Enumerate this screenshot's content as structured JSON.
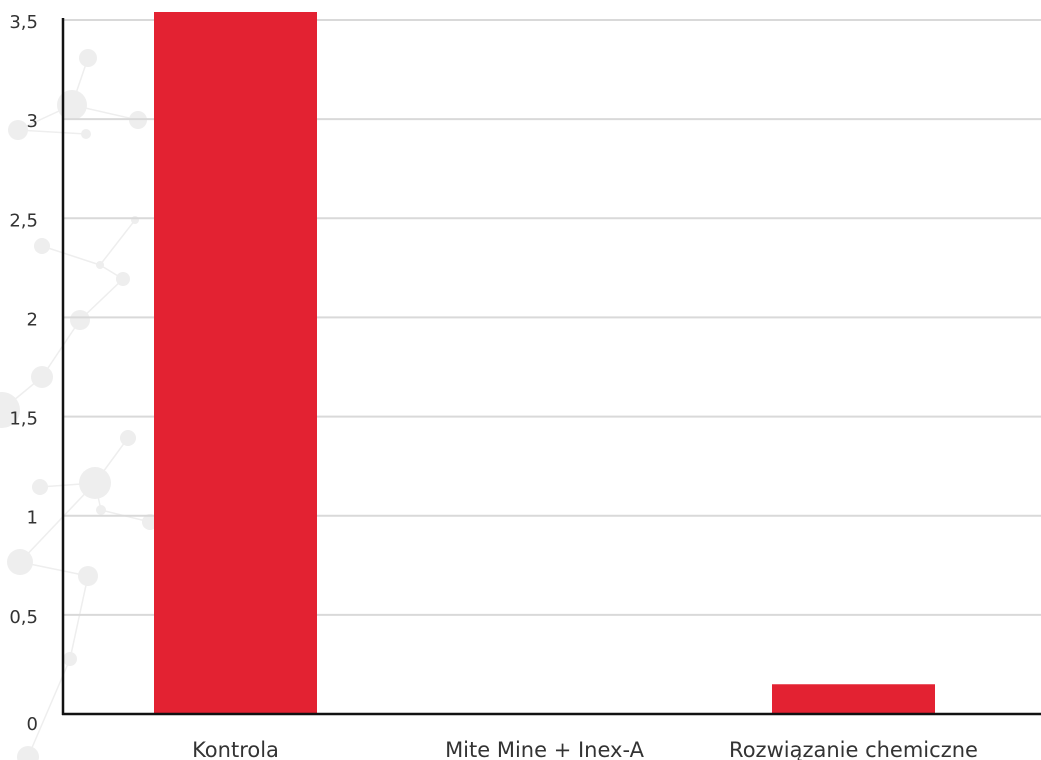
{
  "chart_data": {
    "type": "bar",
    "categories": [
      "Kontrola",
      "Mite Mine + Inex-A",
      "Rozwiązanie chemiczne"
    ],
    "values": [
      3.55,
      0,
      0.15
    ],
    "ylim": [
      0,
      3.5
    ],
    "yticks": [
      "0",
      "0,5",
      "1",
      "1,5",
      "2",
      "2,5",
      "3",
      "3,5"
    ],
    "grid": true,
    "legend": "none",
    "colors": {
      "bar": "#E32232",
      "grid": "#d9d9d9",
      "axis": "#111111",
      "text": "#333333",
      "decor": "#eeeeee"
    }
  }
}
